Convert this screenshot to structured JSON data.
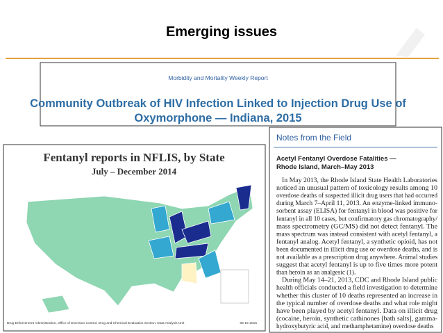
{
  "header": {
    "title": "Emerging issues"
  },
  "mmwr": {
    "journal": "Morbidity and Mortality Weekly Report",
    "headline_lines": [
      "Community Outbreak of HIV Infection Linked to Injection Drug Use of",
      "Oxymorphone — Indiana, 2015"
    ]
  },
  "map": {
    "title": "Fentanyl reports in NFLIS, by State",
    "subtitle": "July – December 2014",
    "source": "Drug Enforcement Administration, Office of Diversion Control, Drug and Chemical Evaluation Section, Data Analysis Unit",
    "date": "06-15-2015"
  },
  "notes": {
    "section": "Notes from the Field",
    "headline_lines": [
      "Acetyl Fentanyl Overdose Fatalities —",
      "Rhode Island, March–May 2013"
    ],
    "body_lines": [
      "In May 2013, the Rhode Island State Health Laboratories",
      "noticed an unusual pattern of toxicology results among 10",
      "overdose deaths of suspected illicit drug users that had occurred",
      "during March 7–April 11, 2013. An enzyme-linked immuno-",
      "sorbent assay (ELISA) for fentanyl in blood was positive for",
      "fentanyl in all 10 cases, but confirmatory gas chromatography/",
      "mass spectrometry (GC/MS) did not detect fentanyl. The",
      "mass spectrum was instead consistent with acetyl fentanyl, a",
      "fentanyl analog. Acetyl fentanyl, a synthetic opioid, has not",
      "been documented in illicit drug use or overdose deaths, and is",
      "not available as a prescription drug anywhere. Animal studies",
      "suggest that acetyl fentanyl is up to five times more potent",
      "than heroin as an analgesic (1).",
      "During May 14–21, 2013, CDC and Rhode Island public",
      "health officials conducted a field investigation to determine",
      "whether this cluster of 10 deaths represented an increase in",
      "the typical number of overdose deaths and what role might",
      "have been played by acetyl fentanyl. Data on illicit drug",
      "(cocaine, heroin, synthetic cathinones [bath salts], gamma-",
      "hydroxybutyric acid, and methamphetamine) overdose deaths"
    ]
  }
}
